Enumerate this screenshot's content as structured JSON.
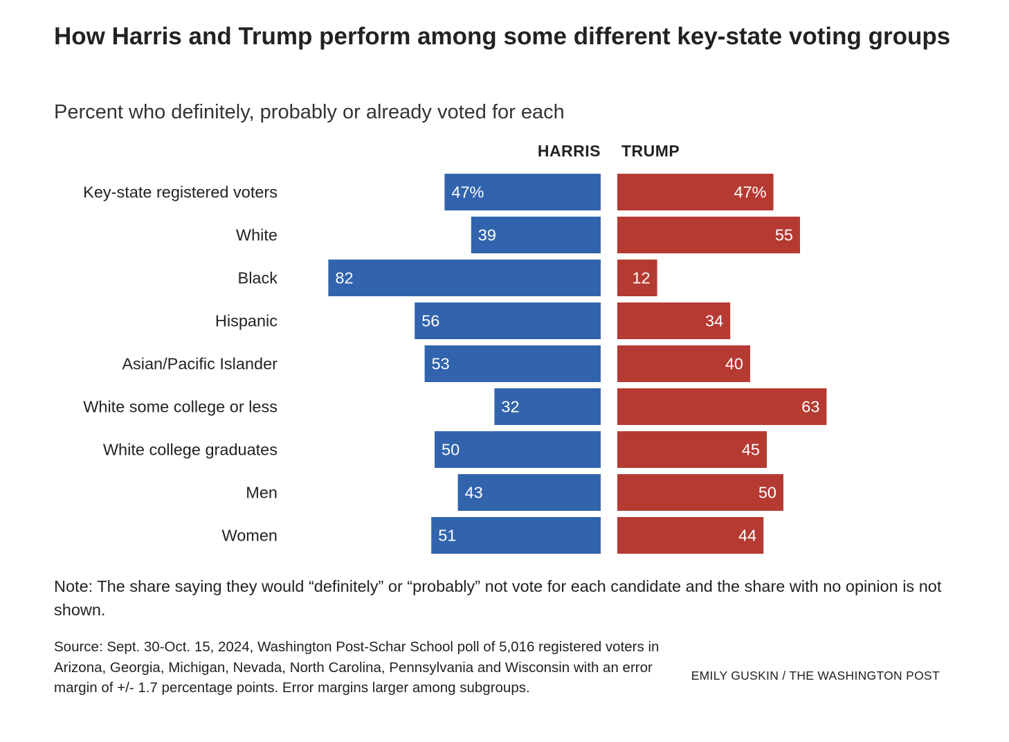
{
  "chart_data": {
    "type": "bar",
    "title": "How Harris and Trump perform among some different key-state voting groups",
    "subtitle": "Percent who definitely, probably or already voted for each",
    "categories": [
      "Key-state registered voters",
      "White",
      "Black",
      "Hispanic",
      "Asian/Pacific Islander",
      "White some college or less",
      "White college graduates",
      "Men",
      "Women"
    ],
    "series": [
      {
        "name": "HARRIS",
        "color": "#3164ad",
        "values": [
          47,
          39,
          82,
          56,
          53,
          32,
          50,
          43,
          51
        ]
      },
      {
        "name": "TRUMP",
        "color": "#b53a32",
        "values": [
          47,
          55,
          12,
          34,
          40,
          63,
          45,
          50,
          44
        ]
      }
    ],
    "first_value_suffix": "%",
    "layout": "diverging-horizontal-bars",
    "grid": false
  },
  "note": "Note: The share saying they would “definitely” or “probably” not vote for each candidate and the share with no opinion is not shown.",
  "source": "Source: Sept. 30-Oct. 15, 2024, Washington Post-Schar School poll of 5,016 registered voters in Arizona, Georgia, Michigan, Nevada, North Carolina, Pennsylvania and Wisconsin with an error margin of +/- 1.7 percentage points. Error margins larger among subgroups.",
  "credit": "EMILY GUSKIN / THE WASHINGTON POST"
}
